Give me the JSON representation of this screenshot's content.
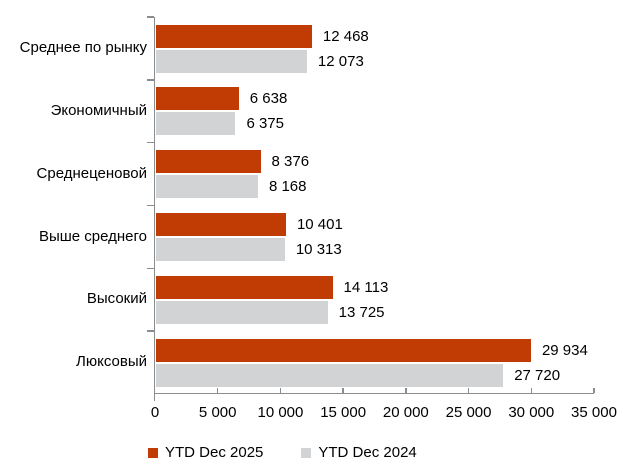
{
  "chart_data": {
    "type": "bar",
    "orientation": "horizontal",
    "title": "",
    "categories": [
      "Среднее по рынку",
      "Экономичный",
      "Среднеценовой",
      "Выше среднего",
      "Высокий",
      "Люксовый"
    ],
    "series": [
      {
        "name": "YTD Dec 2025",
        "color": "#c13b05",
        "values": [
          12468,
          6638,
          8376,
          10401,
          14113,
          29934
        ],
        "value_labels": [
          "12 468",
          "6 638",
          "8 376",
          "10 401",
          "14 113",
          "29 934"
        ]
      },
      {
        "name": "YTD Dec 2024",
        "color": "#d1d3d4",
        "values": [
          12073,
          6375,
          8168,
          10313,
          13725,
          27720
        ],
        "value_labels": [
          "12 073",
          "6 375",
          "8 168",
          "10 313",
          "13 725",
          "27 720"
        ]
      }
    ],
    "xlim": [
      0,
      35000
    ],
    "x_ticks": [
      0,
      5000,
      10000,
      15000,
      20000,
      25000,
      30000,
      35000
    ],
    "x_tick_labels": [
      "0",
      "5 000",
      "10 000",
      "15 000",
      "20 000",
      "25 000",
      "30 000",
      "35 000"
    ],
    "grid": false,
    "legend_position": "bottom",
    "axis_color": "#8a8d8f",
    "text_color": "#000000",
    "background_color": "#ffffff"
  }
}
